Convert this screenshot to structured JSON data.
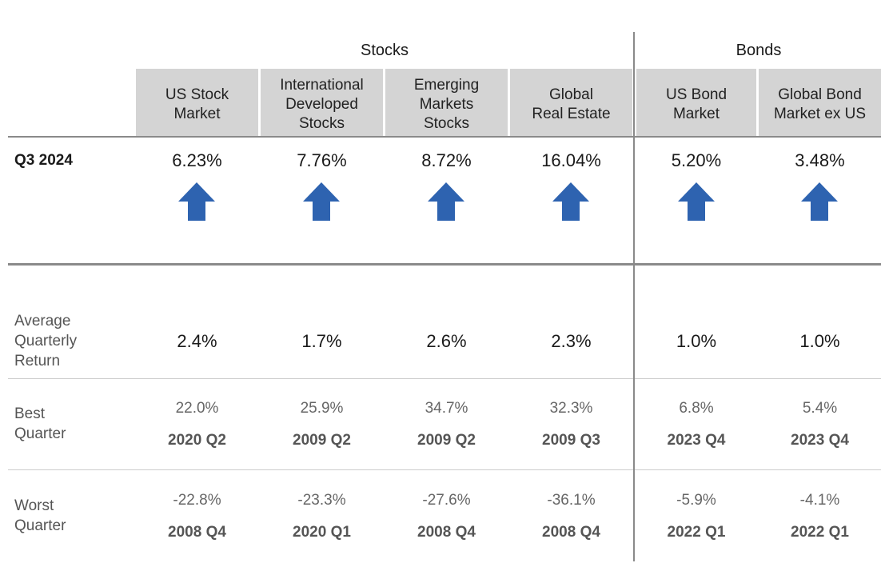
{
  "chart_data": {
    "type": "table",
    "groups": [
      {
        "label": "Stocks"
      },
      {
        "label": "Bonds"
      }
    ],
    "columns": [
      "US Stock\nMarket",
      "International\nDeveloped\nStocks",
      "Emerging\nMarkets\nStocks",
      "Global\nReal Estate",
      "US Bond\nMarket",
      "Global Bond\nMarket ex US"
    ],
    "rows": {
      "q3_label": "Q3 2024",
      "q3_values": [
        "6.23%",
        "7.76%",
        "8.72%",
        "16.04%",
        "5.20%",
        "3.48%"
      ],
      "q3_direction": [
        "up",
        "up",
        "up",
        "up",
        "up",
        "up"
      ],
      "avg_label": "Average\nQuarterly\nReturn",
      "avg_values": [
        "2.4%",
        "1.7%",
        "2.6%",
        "2.3%",
        "1.0%",
        "1.0%"
      ],
      "best_label": "Best\nQuarter",
      "best_values": [
        "22.0%",
        "25.9%",
        "34.7%",
        "32.3%",
        "6.8%",
        "5.4%"
      ],
      "best_quarters": [
        "2020 Q2",
        "2009 Q2",
        "2009 Q2",
        "2009 Q3",
        "2023 Q4",
        "2023 Q4"
      ],
      "worst_label": "Worst\nQuarter",
      "worst_values": [
        "-22.8%",
        "-23.3%",
        "-27.6%",
        "-36.1%",
        "-5.9%",
        "-4.1%"
      ],
      "worst_quarters": [
        "2008 Q4",
        "2020 Q1",
        "2008 Q4",
        "2008 Q4",
        "2022 Q1",
        "2022 Q1"
      ]
    }
  },
  "colors": {
    "header_bg": "#d4d4d4",
    "arrow": "#2e63b0",
    "divider": "#8a8a8a",
    "light_divider": "#cccccc"
  },
  "icons": {
    "arrow": "arrow-up-icon"
  }
}
